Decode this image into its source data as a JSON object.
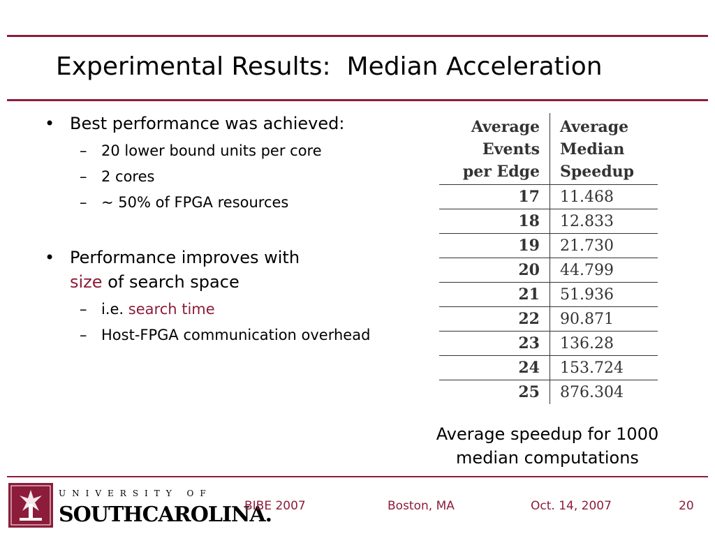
{
  "slide": {
    "title": "Experimental Results:  Median Acceleration",
    "bullets": [
      {
        "text": "Best performance was achieved:",
        "subs": [
          "20 lower bound units per core",
          "2 cores",
          "~ 50% of FPGA resources"
        ]
      },
      {
        "text_before": "Performance improves with",
        "highlight": "size",
        "text_after": "of search space",
        "subs": [
          {
            "prefix": "i.e.",
            "highlight": "search time"
          },
          "Host-FPGA communication overhead"
        ]
      }
    ],
    "bullet_symbol": "•",
    "dash_symbol": "–"
  },
  "table": {
    "headers": [
      "Average Events per Edge",
      "Average Median Speedup"
    ],
    "header_lines": [
      [
        "Average",
        "Events",
        "per Edge"
      ],
      [
        "Average",
        "Median",
        "Speedup"
      ]
    ],
    "rows": [
      [
        "17",
        "11.468"
      ],
      [
        "18",
        "12.833"
      ],
      [
        "19",
        "21.730"
      ],
      [
        "20",
        "44.799"
      ],
      [
        "21",
        "51.936"
      ],
      [
        "22",
        "90.871"
      ],
      [
        "23",
        "136.28"
      ],
      [
        "24",
        "153.724"
      ],
      [
        "25",
        "876.304"
      ]
    ]
  },
  "caption": {
    "line1": "Average speedup for 1000",
    "line2": "median computations"
  },
  "logo": {
    "top": "UNIVERSITY OF",
    "bottom": "SOUTHCAROLINA."
  },
  "footer": {
    "event": "BIBE 2007",
    "location": "Boston, MA",
    "date": "Oct. 14, 2007",
    "page": "20"
  },
  "colors": {
    "accent": "#8c1c3a"
  }
}
